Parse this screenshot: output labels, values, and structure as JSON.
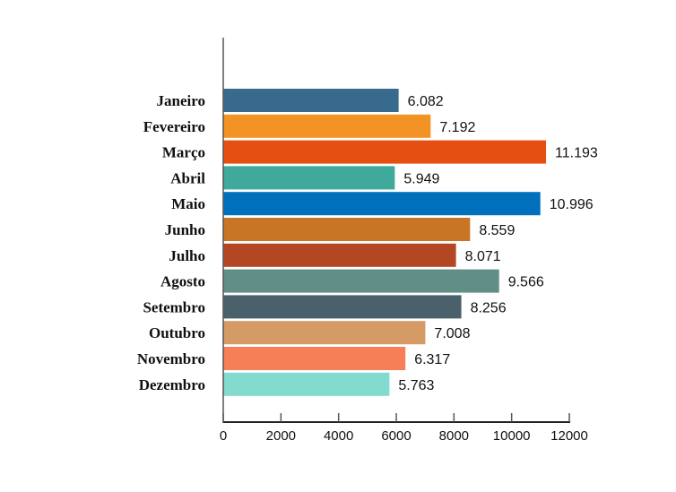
{
  "chart_data": {
    "type": "bar",
    "orientation": "horizontal",
    "categories": [
      "Janeiro",
      "Fevereiro",
      "Março",
      "Abril",
      "Maio",
      "Junho",
      "Julho",
      "Agosto",
      "Setembro",
      "Outubro",
      "Novembro",
      "Dezembro"
    ],
    "values": [
      6082,
      7192,
      11193,
      5949,
      10996,
      8559,
      8071,
      9566,
      8256,
      7008,
      6317,
      5763
    ],
    "value_labels": [
      "6.082",
      "7.192",
      "11.193",
      "5.949",
      "10.996",
      "8.559",
      "8.071",
      "9.566",
      "8.256",
      "7.008",
      "6.317",
      "5.763"
    ],
    "colors": [
      "#376a8c",
      "#f39326",
      "#e64f12",
      "#3fa99b",
      "#0070bd",
      "#c87526",
      "#b34724",
      "#618e87",
      "#4a606a",
      "#d59a66",
      "#f77f57",
      "#83dbd0"
    ],
    "xlim": [
      0,
      12000
    ],
    "xticks": [
      0,
      2000,
      4000,
      6000,
      8000,
      10000,
      12000
    ],
    "title": "",
    "xlabel": "",
    "ylabel": "",
    "grid": false,
    "legend": "none"
  }
}
